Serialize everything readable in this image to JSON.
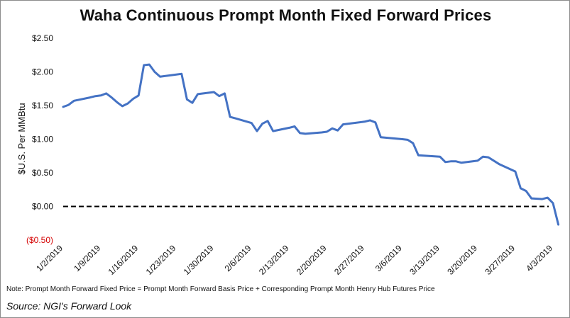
{
  "chart_data": {
    "type": "line",
    "title": "Waha Continuous Prompt Month Fixed Forward Prices",
    "ylabel": "$U.S. Per MMBtu",
    "xlabel": "",
    "ylim": [
      -0.5,
      2.5
    ],
    "yticks": [
      {
        "value": 2.5,
        "label": "$2.50"
      },
      {
        "value": 2.0,
        "label": "$2.00"
      },
      {
        "value": 1.5,
        "label": "$1.50"
      },
      {
        "value": 1.0,
        "label": "$1.00"
      },
      {
        "value": 0.5,
        "label": "$0.50"
      },
      {
        "value": 0.0,
        "label": "$0.00"
      },
      {
        "value": -0.5,
        "label": "($0.50)"
      }
    ],
    "xticks": [
      "1/2/2019",
      "1/9/2019",
      "1/16/2019",
      "1/23/2019",
      "1/30/2019",
      "2/6/2019",
      "2/13/2019",
      "2/20/2019",
      "2/27/2019",
      "3/6/2019",
      "3/13/2019",
      "3/20/2019",
      "3/27/2019",
      "4/3/2019"
    ],
    "xlim": [
      "2019-01-02",
      "2019-04-03"
    ],
    "grid": false,
    "reference_line": {
      "y": 0.0,
      "style": "dashed",
      "color": "#000000"
    },
    "series": [
      {
        "color": "#4472c4",
        "points": [
          [
            "2019-01-02",
            1.48
          ],
          [
            "2019-01-03",
            1.51
          ],
          [
            "2019-01-04",
            1.57
          ],
          [
            "2019-01-07",
            1.62
          ],
          [
            "2019-01-08",
            1.64
          ],
          [
            "2019-01-09",
            1.65
          ],
          [
            "2019-01-10",
            1.68
          ],
          [
            "2019-01-11",
            1.62
          ],
          [
            "2019-01-12",
            1.55
          ],
          [
            "2019-01-13",
            1.49
          ],
          [
            "2019-01-14",
            1.53
          ],
          [
            "2019-01-15",
            1.6
          ],
          [
            "2019-01-16",
            1.65
          ],
          [
            "2019-01-17",
            2.1
          ],
          [
            "2019-01-18",
            2.11
          ],
          [
            "2019-01-19",
            2.0
          ],
          [
            "2019-01-20",
            1.93
          ],
          [
            "2019-01-24",
            1.97
          ],
          [
            "2019-01-25",
            1.59
          ],
          [
            "2019-01-26",
            1.54
          ],
          [
            "2019-01-27",
            1.67
          ],
          [
            "2019-01-30",
            1.7
          ],
          [
            "2019-01-31",
            1.64
          ],
          [
            "2019-02-01",
            1.68
          ],
          [
            "2019-02-02",
            1.33
          ],
          [
            "2019-02-03",
            1.31
          ],
          [
            "2019-02-06",
            1.24
          ],
          [
            "2019-02-07",
            1.12
          ],
          [
            "2019-02-08",
            1.23
          ],
          [
            "2019-02-09",
            1.27
          ],
          [
            "2019-02-10",
            1.12
          ],
          [
            "2019-02-13",
            1.17
          ],
          [
            "2019-02-14",
            1.19
          ],
          [
            "2019-02-15",
            1.09
          ],
          [
            "2019-02-16",
            1.08
          ],
          [
            "2019-02-19",
            1.1
          ],
          [
            "2019-02-20",
            1.11
          ],
          [
            "2019-02-21",
            1.16
          ],
          [
            "2019-02-22",
            1.13
          ],
          [
            "2019-02-23",
            1.22
          ],
          [
            "2019-02-27",
            1.26
          ],
          [
            "2019-02-28",
            1.28
          ],
          [
            "2019-03-01",
            1.25
          ],
          [
            "2019-03-02",
            1.03
          ],
          [
            "2019-03-06",
            1.0
          ],
          [
            "2019-03-07",
            0.99
          ],
          [
            "2019-03-08",
            0.94
          ],
          [
            "2019-03-09",
            0.76
          ],
          [
            "2019-03-13",
            0.74
          ],
          [
            "2019-03-14",
            0.66
          ],
          [
            "2019-03-15",
            0.67
          ],
          [
            "2019-03-16",
            0.67
          ],
          [
            "2019-03-17",
            0.65
          ],
          [
            "2019-03-20",
            0.68
          ],
          [
            "2019-03-21",
            0.74
          ],
          [
            "2019-03-22",
            0.73
          ],
          [
            "2019-03-24",
            0.63
          ],
          [
            "2019-03-27",
            0.52
          ],
          [
            "2019-03-28",
            0.27
          ],
          [
            "2019-03-29",
            0.23
          ],
          [
            "2019-03-30",
            0.12
          ],
          [
            "2019-04-01",
            0.11
          ],
          [
            "2019-04-02",
            0.13
          ],
          [
            "2019-04-03",
            0.05
          ],
          [
            "2019-04-04",
            -0.27
          ]
        ]
      }
    ]
  },
  "footer": {
    "note": "Note: Prompt Month Forward Fixed Price = Prompt Month Forward Basis Price + Corresponding Prompt Month Henry Hub Futures Price",
    "source": "Source: NGI's Forward Look"
  },
  "colors": {
    "line": "#4472c4",
    "negative_label": "#d40000",
    "zero_line": "#000000"
  }
}
